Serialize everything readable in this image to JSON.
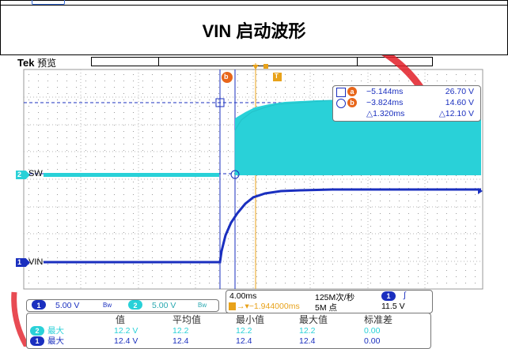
{
  "colors": {
    "ch1": "#1a2fbf",
    "ch2": "#29d1d8",
    "cursor": "#e8661a",
    "watermark": "#e21e28"
  },
  "title": "VIN 启动波形",
  "scope": {
    "brand": "Tek",
    "mode": "预览",
    "ch2_name": "SW",
    "ch1_name": "VIN",
    "ch2_marker": "2",
    "ch1_marker": "1",
    "cursor_a_tag": "b",
    "cursor_b_tag": "b",
    "trigger_tag": "T"
  },
  "cursors": {
    "a_label": "a",
    "a_time": "−5.144ms",
    "a_value": "26.70 V",
    "b_label": "b",
    "b_time": "−3.824ms",
    "b_value": "14.60 V",
    "delta_time": "△1.320ms",
    "delta_value": "△12.10 V"
  },
  "status": {
    "ch1_num": "1",
    "ch1_scale": "5.00 V",
    "ch1_bw": "Bw",
    "ch2_num": "2",
    "ch2_scale": "5.00 V",
    "ch2_bw": "Bw"
  },
  "timebase": {
    "scale": "4.00ms",
    "sample_rate": "125M次/秒",
    "trig_ch": "1",
    "trig_slope": "∫",
    "position": "→▾−1.944000ms",
    "record": "5M 点",
    "trig_level": "11.5 V"
  },
  "measurements": {
    "headers": [
      "值",
      "平均值",
      "最小值",
      "最大值",
      "标准差"
    ],
    "rows": [
      {
        "ch": "2",
        "label": "最大",
        "values": [
          "12.2 V",
          "12.2",
          "12.2",
          "12.2",
          "0.00"
        ]
      },
      {
        "ch": "1",
        "label": "最大",
        "values": [
          "12.4 V",
          "12.4",
          "12.4",
          "12.4",
          "0.00"
        ]
      }
    ]
  }
}
